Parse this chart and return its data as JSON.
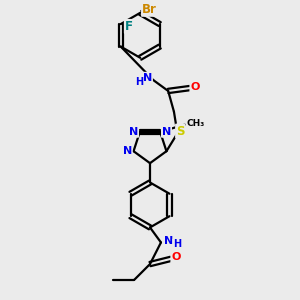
{
  "bg_color": "#ebebeb",
  "atom_colors": {
    "C": "#000000",
    "N": "#0000ee",
    "O": "#ff0000",
    "S": "#cccc00",
    "F": "#008080",
    "Br": "#cc8800",
    "H": "#000000"
  },
  "bond_color": "#000000",
  "figsize": [
    3.0,
    3.0
  ],
  "dpi": 100,
  "xlim": [
    0,
    10
  ],
  "ylim": [
    0,
    10
  ]
}
